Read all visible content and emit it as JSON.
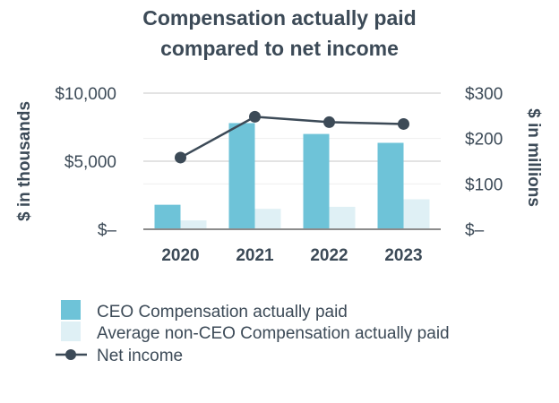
{
  "chart_data": {
    "type": "bar",
    "title_lines": [
      "Compensation actually paid",
      "compared to net income"
    ],
    "categories": [
      "2020",
      "2021",
      "2022",
      "2023"
    ],
    "y_left": {
      "label": "$ in thousands",
      "ticks": [
        "$10,000",
        "$5,000",
        "$–"
      ],
      "range": [
        0,
        10000
      ]
    },
    "y_right": {
      "label": "$ in millions",
      "ticks": [
        "$300",
        "$200",
        "$100",
        "$–"
      ],
      "range": [
        0,
        300
      ]
    },
    "series": [
      {
        "name": "CEO Compensation actually paid",
        "type": "bar",
        "axis": "left",
        "color": "#6ec3d8",
        "values": [
          1800,
          7800,
          7000,
          6350
        ]
      },
      {
        "name": "Average non-CEO Compensation actually paid",
        "type": "bar",
        "axis": "left",
        "color": "#dff0f5",
        "values": [
          650,
          1500,
          1650,
          2200
        ]
      },
      {
        "name": "Net income",
        "type": "line",
        "axis": "right",
        "color": "#3c4a57",
        "values": [
          158,
          248,
          236,
          232
        ]
      }
    ],
    "grid": true,
    "legend_position": "bottom-left"
  }
}
